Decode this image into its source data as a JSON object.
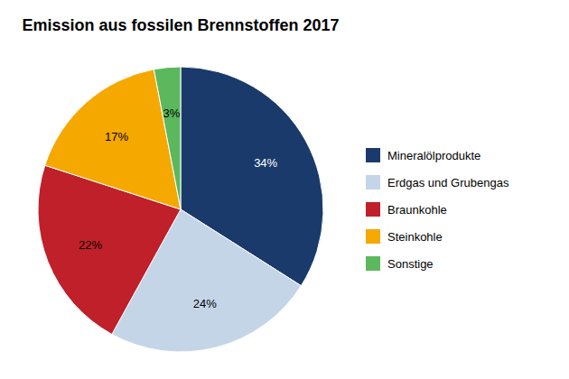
{
  "chart_data": {
    "type": "pie",
    "title": "Emission aus fossilen Brennstoffen 2017",
    "categories": [
      "Mineralölprodukte",
      "Erdgas und Grubengas",
      "Braunkohle",
      "Steinkohle",
      "Sonstige"
    ],
    "values": [
      34,
      24,
      22,
      17,
      3
    ],
    "value_labels": [
      "34%",
      "24%",
      "22%",
      "17%",
      "3%"
    ],
    "colors": [
      "#1a3a6b",
      "#c5d5e8",
      "#c0202a",
      "#f5a800",
      "#5cb85c"
    ],
    "data_labels": true,
    "legend": "right"
  }
}
